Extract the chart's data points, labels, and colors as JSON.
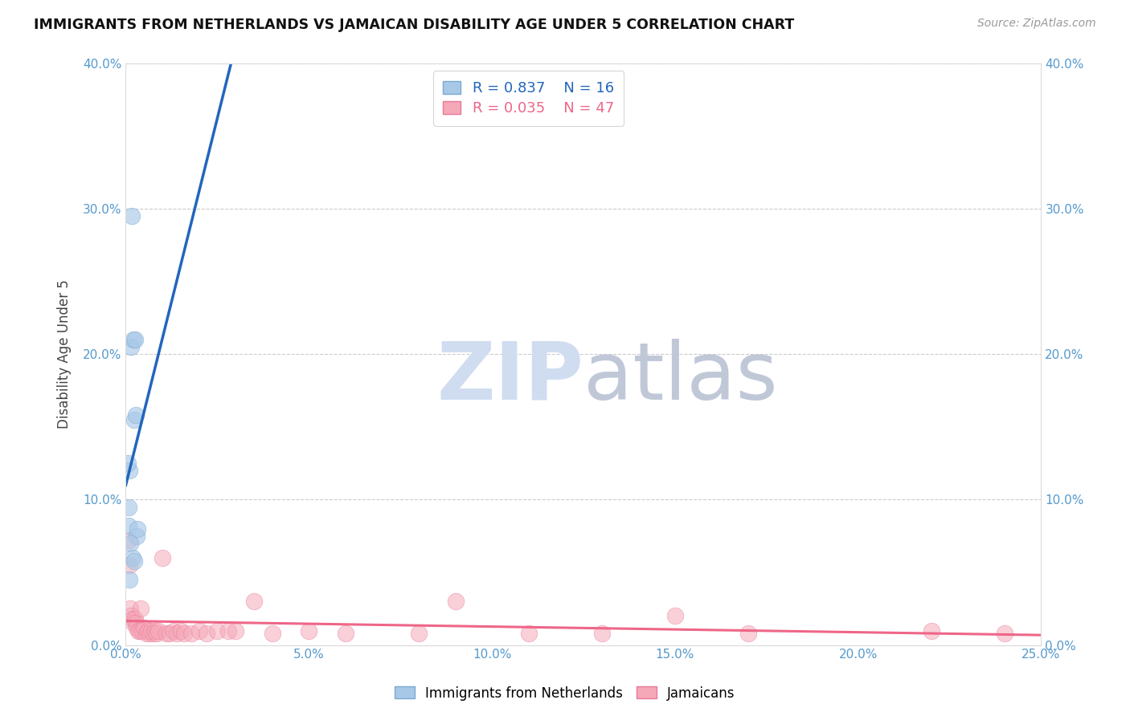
{
  "title": "IMMIGRANTS FROM NETHERLANDS VS JAMAICAN DISABILITY AGE UNDER 5 CORRELATION CHART",
  "source": "Source: ZipAtlas.com",
  "xlim": [
    0,
    0.25
  ],
  "ylim": [
    0,
    0.4
  ],
  "legend1_R": "0.837",
  "legend1_N": "16",
  "legend2_R": "0.035",
  "legend2_N": "47",
  "blue_color": "#A8C8E8",
  "blue_edge_color": "#7AAAD0",
  "pink_color": "#F5A8B8",
  "pink_edge_color": "#E87898",
  "blue_line_color": "#2266BB",
  "pink_line_color": "#EE6688",
  "blue_scatter": [
    [
      0.0008,
      0.082
    ],
    [
      0.001,
      0.12
    ],
    [
      0.0015,
      0.205
    ],
    [
      0.0017,
      0.295
    ],
    [
      0.002,
      0.21
    ],
    [
      0.0022,
      0.155
    ],
    [
      0.0025,
      0.21
    ],
    [
      0.0028,
      0.158
    ],
    [
      0.003,
      0.075
    ],
    [
      0.0032,
      0.08
    ],
    [
      0.0005,
      0.125
    ],
    [
      0.0007,
      0.095
    ],
    [
      0.0012,
      0.07
    ],
    [
      0.0018,
      0.06
    ],
    [
      0.001,
      0.045
    ],
    [
      0.0022,
      0.058
    ]
  ],
  "pink_scatter": [
    [
      0.0008,
      0.072
    ],
    [
      0.001,
      0.055
    ],
    [
      0.0012,
      0.025
    ],
    [
      0.0015,
      0.02
    ],
    [
      0.0018,
      0.018
    ],
    [
      0.002,
      0.015
    ],
    [
      0.0025,
      0.018
    ],
    [
      0.0028,
      0.015
    ],
    [
      0.003,
      0.012
    ],
    [
      0.0035,
      0.01
    ],
    [
      0.0038,
      0.01
    ],
    [
      0.004,
      0.025
    ],
    [
      0.0045,
      0.01
    ],
    [
      0.005,
      0.012
    ],
    [
      0.0055,
      0.008
    ],
    [
      0.006,
      0.01
    ],
    [
      0.0065,
      0.008
    ],
    [
      0.007,
      0.01
    ],
    [
      0.0075,
      0.008
    ],
    [
      0.008,
      0.01
    ],
    [
      0.0085,
      0.008
    ],
    [
      0.009,
      0.01
    ],
    [
      0.01,
      0.06
    ],
    [
      0.011,
      0.008
    ],
    [
      0.012,
      0.008
    ],
    [
      0.013,
      0.01
    ],
    [
      0.014,
      0.008
    ],
    [
      0.015,
      0.01
    ],
    [
      0.016,
      0.008
    ],
    [
      0.018,
      0.008
    ],
    [
      0.02,
      0.01
    ],
    [
      0.022,
      0.008
    ],
    [
      0.025,
      0.01
    ],
    [
      0.028,
      0.01
    ],
    [
      0.03,
      0.01
    ],
    [
      0.035,
      0.03
    ],
    [
      0.04,
      0.008
    ],
    [
      0.05,
      0.01
    ],
    [
      0.06,
      0.008
    ],
    [
      0.08,
      0.008
    ],
    [
      0.09,
      0.03
    ],
    [
      0.11,
      0.008
    ],
    [
      0.13,
      0.008
    ],
    [
      0.15,
      0.02
    ],
    [
      0.17,
      0.008
    ],
    [
      0.22,
      0.01
    ],
    [
      0.24,
      0.008
    ]
  ],
  "background_color": "#FFFFFF",
  "grid_color": "#CCCCCC",
  "watermark_zip_color": "#D0DDF0",
  "watermark_atlas_color": "#C0C8D8",
  "watermark_fontsize": 72
}
